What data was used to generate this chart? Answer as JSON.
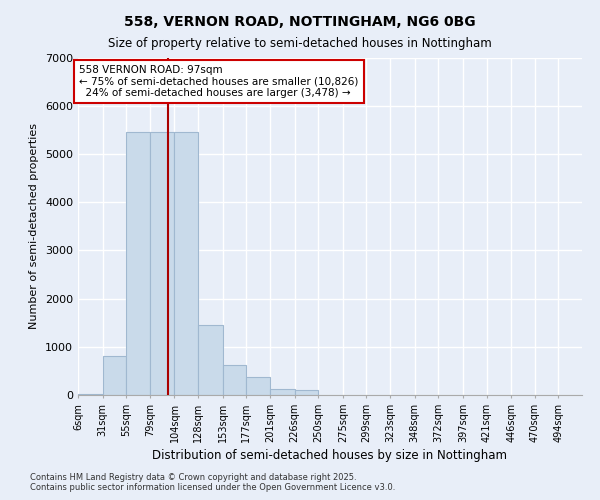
{
  "title": "558, VERNON ROAD, NOTTINGHAM, NG6 0BG",
  "subtitle": "Size of property relative to semi-detached houses in Nottingham",
  "xlabel": "Distribution of semi-detached houses by size in Nottingham",
  "ylabel": "Number of semi-detached properties",
  "property_label": "558 VERNON ROAD: 97sqm",
  "pct_smaller": "75% of semi-detached houses are smaller (10,826)",
  "pct_larger": "24% of semi-detached houses are larger (3,478)",
  "property_size": 97,
  "categories": [
    "6sqm",
    "31sqm",
    "55sqm",
    "79sqm",
    "104sqm",
    "128sqm",
    "153sqm",
    "177sqm",
    "201sqm",
    "226sqm",
    "250sqm",
    "275sqm",
    "299sqm",
    "323sqm",
    "348sqm",
    "372sqm",
    "397sqm",
    "421sqm",
    "446sqm",
    "470sqm",
    "494sqm"
  ],
  "bin_edges": [
    6,
    31,
    55,
    79,
    104,
    128,
    153,
    177,
    201,
    226,
    250,
    275,
    299,
    323,
    348,
    372,
    397,
    421,
    446,
    470,
    494,
    518
  ],
  "values": [
    30,
    800,
    5450,
    5450,
    5450,
    1450,
    620,
    380,
    130,
    110,
    0,
    0,
    0,
    0,
    0,
    0,
    0,
    0,
    0,
    0,
    0
  ],
  "bar_color": "#c9daea",
  "bar_edge_color": "#a0b8d0",
  "vline_color": "#aa0000",
  "background_color": "#e8eef8",
  "grid_color": "#ffffff",
  "annotation_box_color": "#ffffff",
  "annotation_box_edge": "#cc0000",
  "ylim": [
    0,
    7000
  ],
  "yticks": [
    0,
    1000,
    2000,
    3000,
    4000,
    5000,
    6000,
    7000
  ],
  "footer_line1": "Contains HM Land Registry data © Crown copyright and database right 2025.",
  "footer_line2": "Contains public sector information licensed under the Open Government Licence v3.0."
}
